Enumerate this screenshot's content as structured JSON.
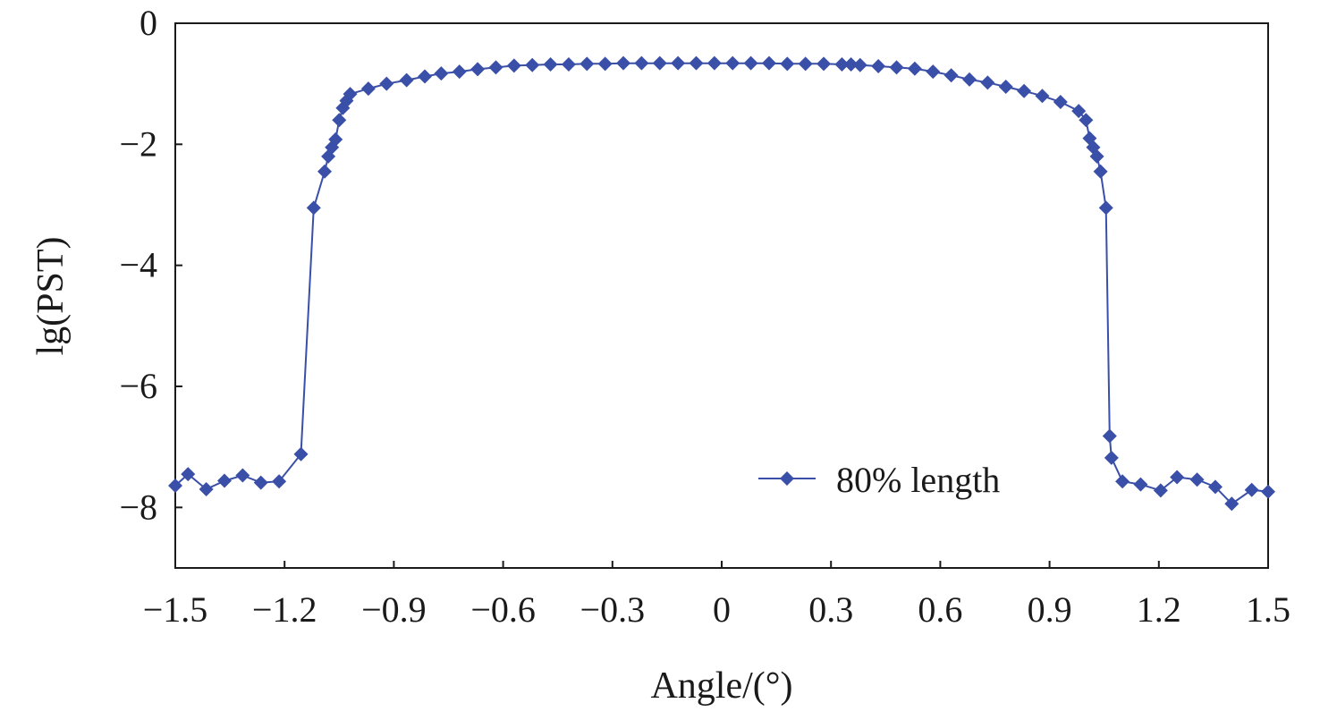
{
  "chart_data": {
    "type": "line",
    "xlabel": "Angle/(°)",
    "ylabel": "lg(PST)",
    "xlim": [
      -1.5,
      1.5
    ],
    "ylim": [
      -9,
      0
    ],
    "xticks": [
      -1.5,
      -1.2,
      -0.9,
      -0.6,
      -0.3,
      0,
      0.3,
      0.6,
      0.9,
      1.2,
      1.5
    ],
    "yticks": [
      0,
      -2,
      -4,
      -6,
      -8
    ],
    "xtick_labels": [
      "−1.5",
      "−1.2",
      "−0.9",
      "−0.6",
      "−0.3",
      "0",
      "0.3",
      "0.6",
      "0.9",
      "1.2",
      "1.5"
    ],
    "ytick_labels": [
      "0",
      "−2",
      "−4",
      "−6",
      "−8"
    ],
    "grid": false,
    "legend_position": "bottom-right",
    "color": "#3a4fa8",
    "series": [
      {
        "name": "80% length",
        "marker": "diamond",
        "points": [
          [
            -1.5,
            -7.64
          ],
          [
            -1.465,
            -7.45
          ],
          [
            -1.415,
            -7.7
          ],
          [
            -1.365,
            -7.56
          ],
          [
            -1.315,
            -7.47
          ],
          [
            -1.265,
            -7.59
          ],
          [
            -1.215,
            -7.57
          ],
          [
            -1.155,
            -7.12
          ],
          [
            -1.12,
            -3.05
          ],
          [
            -1.09,
            -2.45
          ],
          [
            -1.08,
            -2.2
          ],
          [
            -1.07,
            -2.05
          ],
          [
            -1.06,
            -1.92
          ],
          [
            -1.05,
            -1.6
          ],
          [
            -1.04,
            -1.4
          ],
          [
            -1.03,
            -1.28
          ],
          [
            -1.02,
            -1.17
          ],
          [
            -0.97,
            -1.08
          ],
          [
            -0.92,
            -1.0
          ],
          [
            -0.865,
            -0.94
          ],
          [
            -0.815,
            -0.88
          ],
          [
            -0.77,
            -0.83
          ],
          [
            -0.72,
            -0.8
          ],
          [
            -0.67,
            -0.76
          ],
          [
            -0.62,
            -0.73
          ],
          [
            -0.57,
            -0.7
          ],
          [
            -0.52,
            -0.69
          ],
          [
            -0.47,
            -0.68
          ],
          [
            -0.42,
            -0.68
          ],
          [
            -0.37,
            -0.67
          ],
          [
            -0.32,
            -0.67
          ],
          [
            -0.27,
            -0.66
          ],
          [
            -0.22,
            -0.66
          ],
          [
            -0.17,
            -0.66
          ],
          [
            -0.12,
            -0.66
          ],
          [
            -0.07,
            -0.66
          ],
          [
            -0.02,
            -0.66
          ],
          [
            0.03,
            -0.66
          ],
          [
            0.08,
            -0.66
          ],
          [
            0.13,
            -0.66
          ],
          [
            0.18,
            -0.67
          ],
          [
            0.23,
            -0.67
          ],
          [
            0.28,
            -0.67
          ],
          [
            0.33,
            -0.68
          ],
          [
            0.355,
            -0.68
          ],
          [
            0.38,
            -0.69
          ],
          [
            0.43,
            -0.71
          ],
          [
            0.48,
            -0.73
          ],
          [
            0.53,
            -0.75
          ],
          [
            0.58,
            -0.8
          ],
          [
            0.63,
            -0.86
          ],
          [
            0.68,
            -0.93
          ],
          [
            0.73,
            -0.98
          ],
          [
            0.78,
            -1.05
          ],
          [
            0.83,
            -1.12
          ],
          [
            0.88,
            -1.2
          ],
          [
            0.93,
            -1.3
          ],
          [
            0.98,
            -1.45
          ],
          [
            1.0,
            -1.6
          ],
          [
            1.01,
            -1.9
          ],
          [
            1.02,
            -2.05
          ],
          [
            1.03,
            -2.2
          ],
          [
            1.04,
            -2.45
          ],
          [
            1.055,
            -3.05
          ],
          [
            1.065,
            -6.82
          ],
          [
            1.07,
            -7.18
          ],
          [
            1.1,
            -7.57
          ],
          [
            1.15,
            -7.62
          ],
          [
            1.205,
            -7.72
          ],
          [
            1.25,
            -7.5
          ],
          [
            1.305,
            -7.54
          ],
          [
            1.355,
            -7.66
          ],
          [
            1.4,
            -7.94
          ],
          [
            1.455,
            -7.71
          ],
          [
            1.5,
            -7.74
          ]
        ]
      }
    ]
  }
}
